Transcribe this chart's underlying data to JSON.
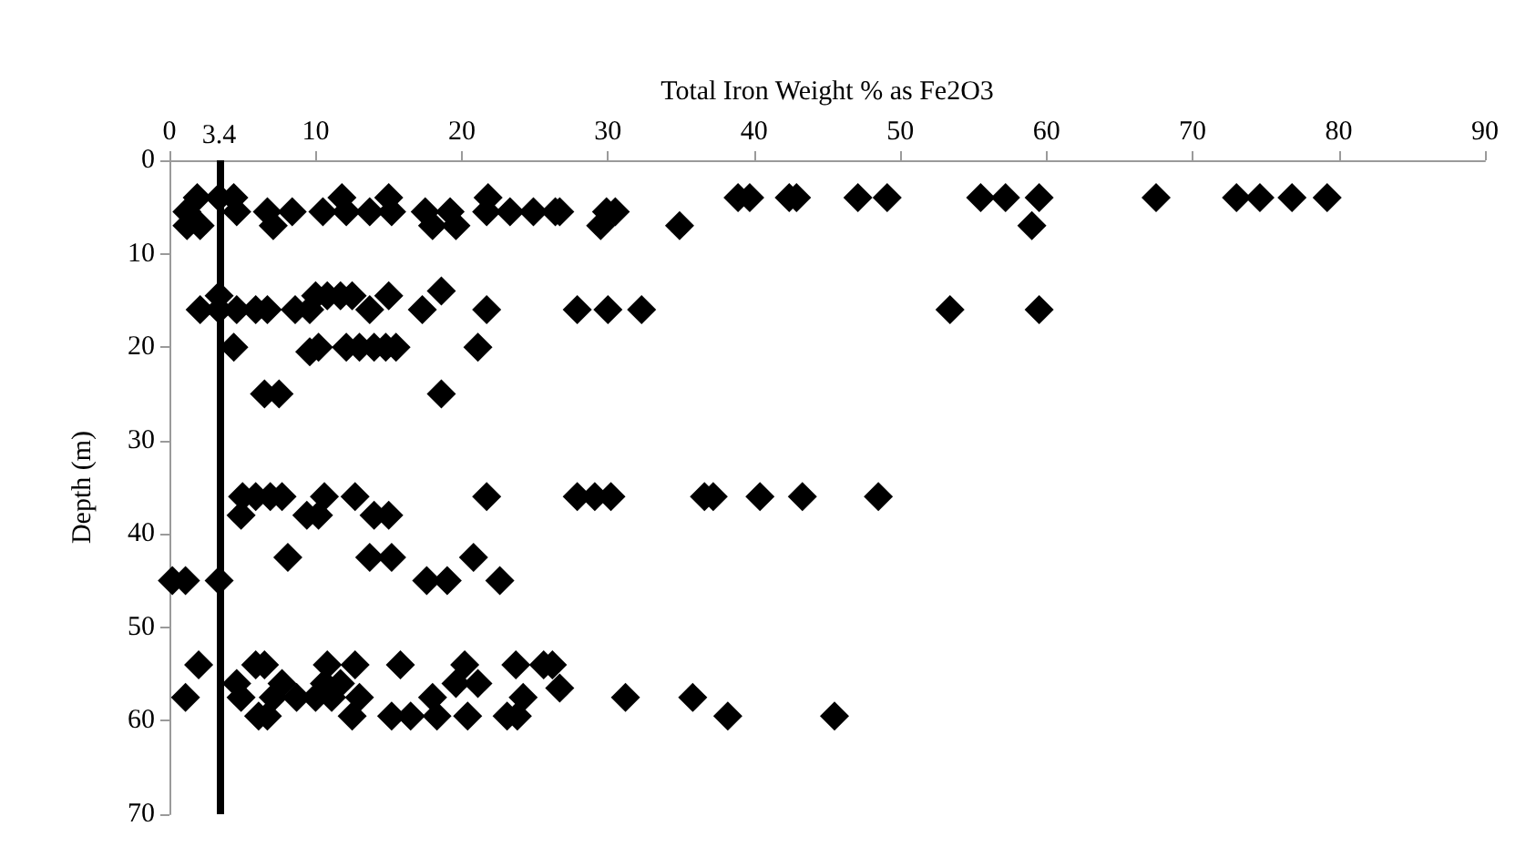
{
  "chart_data": {
    "type": "scatter",
    "xlabel": "Total Iron Weight % as Fe2O3",
    "ylabel": "Depth (m)",
    "series": [
      {
        "color": "#000000",
        "x": [
          38.9,
          39.7,
          42.4,
          42.9,
          47.1,
          49.1,
          55.5,
          57.2,
          59.5,
          67.5,
          73,
          74.6,
          76.8,
          79.2,
          1.9,
          3.4,
          4.4,
          11.8,
          15,
          21.8,
          1.2,
          4.6,
          6.7,
          8.4,
          10.5,
          12.1,
          13.7,
          15.2,
          17.5,
          19.2,
          21.7,
          23.3,
          24.9,
          26.7,
          29.9,
          26.4,
          30.5,
          1.2,
          2.1,
          7.1,
          18,
          19.6,
          29.5,
          34.9,
          59,
          3.4,
          10,
          10.8,
          11.7,
          12.5,
          15,
          18.6,
          2.1,
          3.4,
          4.6,
          5.9,
          6.7,
          8.6,
          9.6,
          13.7,
          17.3,
          21.7,
          27.9,
          30,
          32.3,
          53.4,
          59.5,
          4.4,
          10.2,
          12.1,
          13,
          14,
          15.5,
          21.1,
          9.6,
          14.8,
          6.5,
          7.5,
          18.6,
          5,
          5.9,
          6.9,
          7.7,
          10.6,
          12.7,
          21.7,
          27.9,
          29.1,
          30.2,
          36.6,
          37.2,
          40.4,
          43.3,
          48.5,
          4.9,
          9.4,
          10.2,
          14,
          15,
          8.1,
          13.7,
          15.2,
          20.8,
          0.2,
          1.1,
          3.4,
          17.6,
          19,
          22.6,
          2,
          5.9,
          6.5,
          10.8,
          12.7,
          15.8,
          20.2,
          23.7,
          25.6,
          26.2,
          4.6,
          7.7,
          10.6,
          11.7,
          19.6,
          21.1,
          1.1,
          4.9,
          7.1,
          8.7,
          10,
          11.1,
          13,
          18,
          24.2,
          26.7,
          31.2,
          35.8,
          6.1,
          6.7,
          12.5,
          15.2,
          16.5,
          18.3,
          20.4,
          23.1,
          23.8,
          38.2,
          45.5
        ],
        "values": [
          4,
          4,
          4,
          4,
          4,
          4,
          4,
          4,
          4,
          4,
          4,
          4,
          4,
          4,
          4,
          4,
          4,
          4,
          4,
          4,
          5.5,
          5.5,
          5.5,
          5.5,
          5.5,
          5.5,
          5.5,
          5.5,
          5.5,
          5.5,
          5.5,
          5.5,
          5.5,
          5.5,
          5.5,
          5.5,
          5.5,
          7,
          7,
          7,
          7,
          7,
          7,
          7,
          7,
          14.5,
          14.5,
          14.5,
          14.5,
          14.5,
          14.5,
          14,
          16,
          16,
          16,
          16,
          16,
          16,
          16,
          16,
          16,
          16,
          16,
          16,
          16,
          16,
          16,
          20,
          20,
          20,
          20,
          20,
          20,
          20,
          20.5,
          20,
          25,
          25,
          25,
          36,
          36,
          36,
          36,
          36,
          36,
          36,
          36,
          36,
          36,
          36,
          36,
          36,
          36,
          36,
          38,
          38,
          38,
          38,
          38,
          42.5,
          42.5,
          42.5,
          42.5,
          45,
          45,
          45,
          45,
          45,
          45,
          54,
          54,
          54,
          54,
          54,
          54,
          54,
          54,
          54,
          54,
          56,
          56,
          56,
          56,
          56,
          56,
          57.5,
          57.5,
          57.5,
          57.5,
          57.5,
          57.5,
          57.5,
          57.5,
          57.5,
          56.5,
          57.5,
          57.5,
          59.5,
          59.5,
          59.5,
          59.5,
          59.5,
          59.5,
          59.5,
          59.5,
          59.5,
          59.5,
          59.5
        ]
      }
    ],
    "xlim": [
      0,
      90
    ],
    "xticks": [
      0,
      10,
      20,
      30,
      40,
      50,
      60,
      70,
      80,
      90
    ],
    "ylim": [
      70,
      0
    ],
    "yticks": [
      0,
      10,
      20,
      30,
      40,
      50,
      60,
      70
    ],
    "ref_lines": [
      {
        "axis": "x",
        "value": 3.4,
        "label": "3.4",
        "color": "#000000",
        "line_style": "solid"
      }
    ],
    "marker": "diamond",
    "grid": false
  }
}
